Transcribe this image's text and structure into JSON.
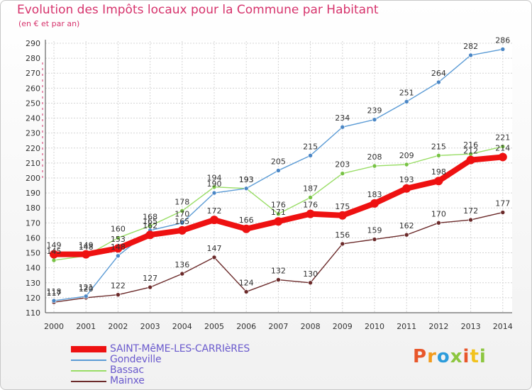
{
  "header": {
    "title": "Evolution des Impôts locaux pour la Commune par Habitant",
    "subtitle": "(en € et par an)"
  },
  "logo": {
    "letters": [
      "P",
      "r",
      "o",
      "x",
      "i",
      "t",
      "i"
    ],
    "colors": [
      "#e8562a",
      "#f29b1d",
      "#2d9cdb",
      "#8cc63f",
      "#e8562a",
      "#f2c21d",
      "#8cc63f"
    ]
  },
  "chart_data": {
    "type": "line",
    "categories": [
      "2000",
      "2001",
      "2002",
      "2003",
      "2004",
      "2005",
      "2006",
      "2007",
      "2008",
      "2009",
      "2010",
      "2011",
      "2012",
      "2013",
      "2014"
    ],
    "ylim": [
      110,
      290
    ],
    "yticks": [
      110,
      120,
      130,
      140,
      150,
      160,
      170,
      180,
      190,
      200,
      210,
      220,
      230,
      240,
      250,
      260,
      270,
      280,
      290
    ],
    "grid": true,
    "legend_position": "bottom-left",
    "series": [
      {
        "name": "Gondeville",
        "color": "#5b9bd5",
        "point_color": "#4a86c5",
        "values": [
          118,
          121,
          148,
          165,
          170,
          190,
          193,
          205,
          215,
          234,
          239,
          251,
          264,
          282,
          286
        ]
      },
      {
        "name": "Bassac",
        "color": "#99dd66",
        "point_color": "#77c244",
        "values": [
          145,
          148,
          160,
          168,
          178,
          194,
          193,
          176,
          187,
          203,
          208,
          209,
          215,
          216,
          221
        ]
      },
      {
        "name": "Mainxe",
        "color": "#6b2a2a",
        "point_color": "#6b2a2a",
        "values": [
          117,
          120,
          122,
          127,
          136,
          147,
          124,
          132,
          130,
          156,
          159,
          162,
          170,
          172,
          177
        ]
      },
      {
        "name": "SAINT-MêME-LES-CARRIèRES",
        "color": "#ee1111",
        "point_color": "#ee1111",
        "values": [
          149,
          149,
          153,
          162,
          165,
          172,
          166,
          171,
          176,
          175,
          183,
          193,
          198,
          212,
          214
        ]
      }
    ],
    "legend_order": [
      "SAINT-MêME-LES-CARRIèRES",
      "Gondeville",
      "Bassac",
      "Mainxe"
    ]
  }
}
